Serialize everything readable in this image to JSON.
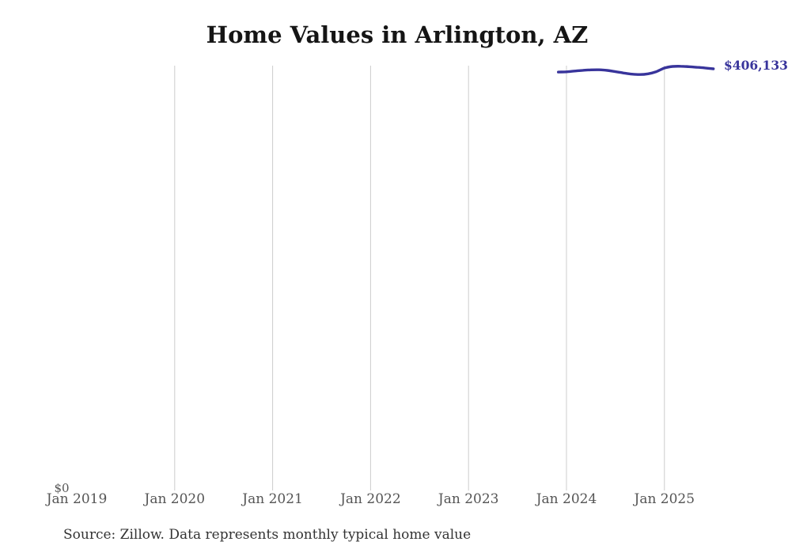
{
  "header": {
    "title": "Home Values in Arlington, AZ"
  },
  "chart_data": {
    "type": "line",
    "title": "Home Values in Arlington, AZ",
    "xlabel": "",
    "ylabel": "",
    "ylim": [
      0,
      410000
    ],
    "grid": "vertical-only",
    "x_ticks": [
      {
        "label": "Jan 2019",
        "gridline": false
      },
      {
        "label": "Jan 2020",
        "gridline": true
      },
      {
        "label": "Jan 2021",
        "gridline": true
      },
      {
        "label": "Jan 2022",
        "gridline": true
      },
      {
        "label": "Jan 2023",
        "gridline": true
      },
      {
        "label": "Jan 2024",
        "gridline": true
      },
      {
        "label": "Jan 2025",
        "gridline": true
      }
    ],
    "y_ticks": [
      {
        "label": "$0",
        "value": 0
      }
    ],
    "series": [
      {
        "name": "Monthly typical home value",
        "color": "#38349b",
        "end_label": "$406,133",
        "points": [
          {
            "month": "Dec 2023",
            "t": 59,
            "value": 403000
          },
          {
            "month": "Jan 2024",
            "t": 60,
            "value": 403200
          },
          {
            "month": "Feb 2024",
            "t": 61,
            "value": 404000
          },
          {
            "month": "Mar 2024",
            "t": 62,
            "value": 404700
          },
          {
            "month": "Apr 2024",
            "t": 63,
            "value": 405100
          },
          {
            "month": "May 2024",
            "t": 64,
            "value": 405200
          },
          {
            "month": "Jun 2024",
            "t": 65,
            "value": 404600
          },
          {
            "month": "Jul 2024",
            "t": 66,
            "value": 403400
          },
          {
            "month": "Aug 2024",
            "t": 67,
            "value": 402100
          },
          {
            "month": "Sep 2024",
            "t": 68,
            "value": 401000
          },
          {
            "month": "Oct 2024",
            "t": 69,
            "value": 400600
          },
          {
            "month": "Nov 2024",
            "t": 70,
            "value": 401300
          },
          {
            "month": "Dec 2024",
            "t": 71,
            "value": 403400
          },
          {
            "month": "Jan 2025",
            "t": 72,
            "value": 406900
          },
          {
            "month": "Feb 2025",
            "t": 73,
            "value": 408400
          },
          {
            "month": "Mar 2025",
            "t": 74,
            "value": 408600
          },
          {
            "month": "Apr 2025",
            "t": 75,
            "value": 408200
          },
          {
            "month": "May 2025",
            "t": 76,
            "value": 407600
          },
          {
            "month": "Jun 2025",
            "t": 77,
            "value": 407000
          },
          {
            "month": "Jul 2025",
            "t": 78,
            "value": 406133
          }
        ]
      }
    ]
  },
  "footer": {
    "source_note": "Source: Zillow. Data represents monthly typical home value"
  },
  "colors": {
    "accent_line": "#38349b",
    "value_label": "#38349b",
    "gridline": "#cccccc",
    "axis_label": "#555555",
    "title": "#151515",
    "source": "#333333",
    "background": "#ffffff"
  }
}
